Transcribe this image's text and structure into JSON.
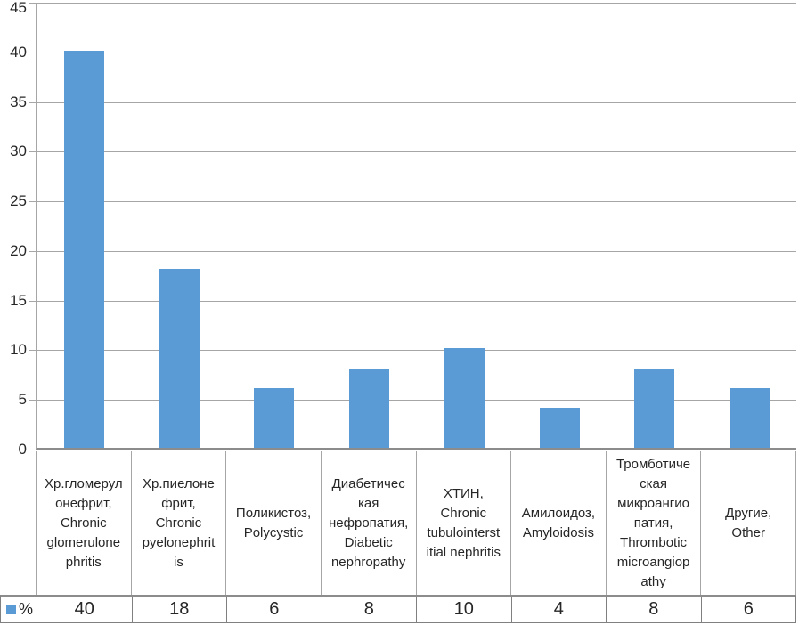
{
  "chart_data": {
    "type": "bar",
    "title": "",
    "xlabel": "",
    "ylabel": "",
    "ylim": [
      0,
      45
    ],
    "yticks": [
      0,
      5,
      10,
      15,
      20,
      25,
      30,
      35,
      40,
      45
    ],
    "grid": true,
    "legend_position": "bottom-table",
    "bar_color": "#5B9BD5",
    "gridline_color": "#A6A6A6",
    "axis_color": "#8C8C8C",
    "table_border_color": "#808080",
    "categories": [
      "Хр.гломерул\nонефрит,\nChronic\nglomerulone\nphritis",
      "Хр.пиелоне\nфрит,\nChronic\npyelonephrit\nis",
      "Поликистоз,\nPolycystic",
      "Диабетичес\nкая\nнефропатия,\nDiabetic\nnephropathy",
      "ХТИН,\nChronic\ntubulointerst\nitial nephritis",
      "Амилоидоз,\nAmyloidosis",
      "Тромботиче\nская\nмикроангио\nпатия,\nThrombotic\nmicroangiop\nathy",
      "Другие,\nOther"
    ],
    "series": [
      {
        "name": "%",
        "values": [
          40,
          18,
          6,
          8,
          10,
          4,
          8,
          6
        ]
      }
    ]
  }
}
